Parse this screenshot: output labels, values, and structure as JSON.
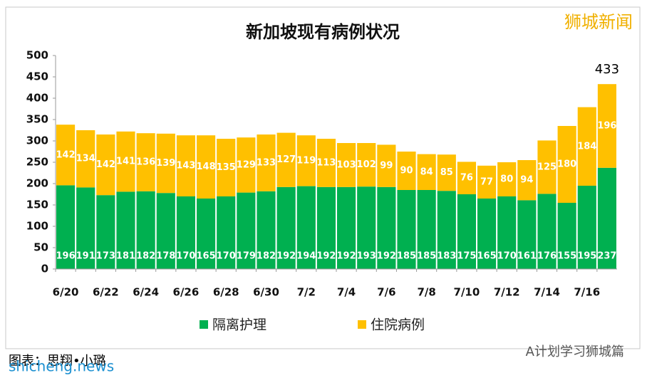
{
  "chart_data": {
    "type": "stacked-bar",
    "title": "新加坡现有病例状况",
    "categories": [
      "6/20",
      null,
      "6/22",
      null,
      "6/24",
      null,
      "6/26",
      null,
      "6/28",
      null,
      "6/30",
      null,
      "7/2",
      null,
      "7/4",
      null,
      "7/6",
      null,
      "7/8",
      null,
      "7/10",
      null,
      "7/12",
      null,
      "7/14",
      null,
      "7/16",
      null
    ],
    "series": [
      {
        "name": "隔离护理",
        "color": "#00b050",
        "values": [
          196,
          191,
          173,
          181,
          182,
          178,
          170,
          165,
          170,
          179,
          182,
          192,
          194,
          192,
          192,
          193,
          192,
          185,
          185,
          183,
          175,
          165,
          170,
          161,
          176,
          155,
          195,
          237
        ]
      },
      {
        "name": "住院病例",
        "color": "#ffc000",
        "values": [
          142,
          134,
          142,
          141,
          136,
          139,
          143,
          148,
          135,
          129,
          133,
          127,
          119,
          113,
          103,
          102,
          99,
          90,
          84,
          85,
          76,
          77,
          80,
          94,
          125,
          180,
          184,
          196
        ]
      }
    ],
    "annotation": "433",
    "ylim": [
      0,
      500
    ],
    "yticks": [
      0,
      50,
      100,
      150,
      200,
      250,
      300,
      350,
      400,
      450,
      500
    ],
    "grid": false,
    "legend": "bottom"
  },
  "watermark": "狮城新闻",
  "credit": "图表：思翔•小璐",
  "site": "shicheng.news",
  "account": "A计划学习狮城篇"
}
